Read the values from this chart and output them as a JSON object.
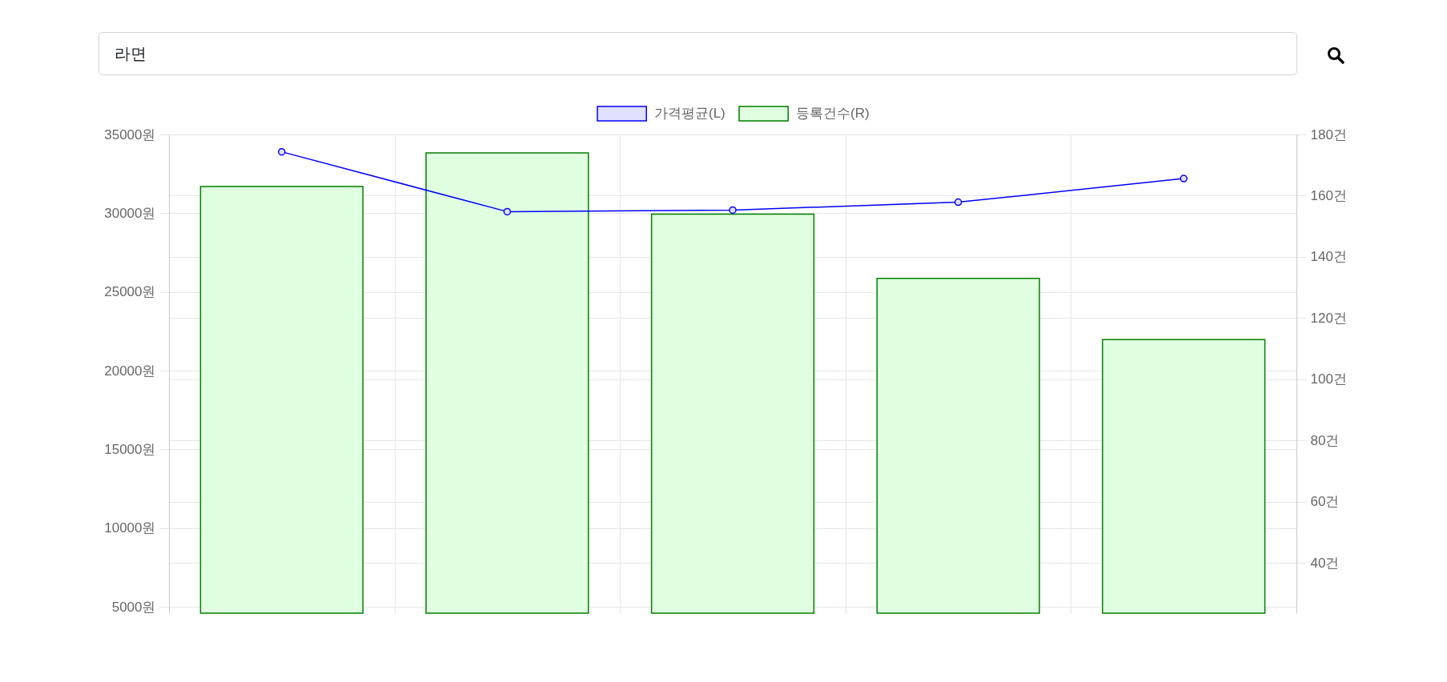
{
  "chart_data": {
    "type": "bar",
    "title": "라면",
    "categories": [
      null,
      null,
      null,
      null,
      null
    ],
    "series": [
      {
        "name": "가격평균(L)",
        "type": "line",
        "color": "#0000ff",
        "values": [
          33900,
          30100,
          30200,
          30700,
          32200
        ]
      },
      {
        "name": "등록건수(R)",
        "axis": "y2",
        "color": "#008000",
        "values": [
          163,
          174,
          154,
          133,
          113
        ]
      }
    ],
    "ylim": [
      4600,
      35000
    ],
    "yticks": [
      {
        "value": 5000,
        "label": "5000원"
      },
      {
        "value": 10000,
        "label": "10000원"
      },
      {
        "value": 15000,
        "label": "15000원"
      },
      {
        "value": 20000,
        "label": "20000원"
      },
      {
        "value": 25000,
        "label": "25000원"
      },
      {
        "value": 30000,
        "label": "30000원"
      },
      {
        "value": 35000,
        "label": "35000원"
      }
    ],
    "y2lim": [
      23.6,
      180
    ],
    "y2ticks": [
      {
        "value": 40,
        "label": "40건"
      },
      {
        "value": 60,
        "label": "60건"
      },
      {
        "value": 80,
        "label": "80건"
      },
      {
        "value": 100,
        "label": "100건"
      },
      {
        "value": 120,
        "label": "120건"
      },
      {
        "value": 140,
        "label": "140건"
      },
      {
        "value": 160,
        "label": "160건"
      },
      {
        "value": 180,
        "label": "180건"
      }
    ],
    "grid": true,
    "legend": "top",
    "marker": "circle",
    "line_style": "solid"
  }
}
